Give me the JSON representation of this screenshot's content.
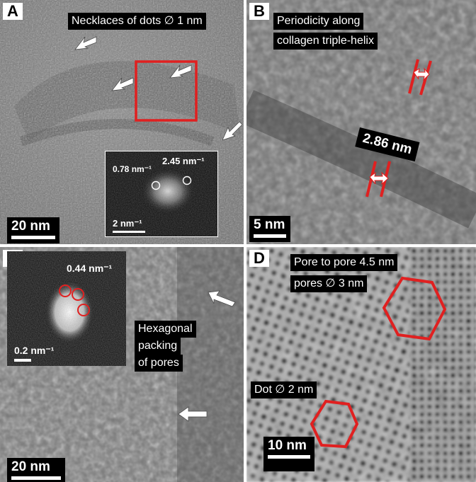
{
  "panels": {
    "A": {
      "letter": "A",
      "caption": "Necklaces of dots ∅ 1 nm",
      "inset": {
        "fft_left": "0.78 nm⁻¹",
        "fft_right": "2.45 nm⁻¹",
        "scale_label": "2 nm⁻¹"
      },
      "scale_label": "20 nm"
    },
    "B": {
      "letter": "B",
      "caption_line1": "Periodicity along",
      "caption_line2": "collagen triple-helix",
      "measurement": "2.86 nm",
      "scale_label": "5 nm"
    },
    "C": {
      "letter": "C",
      "inset": {
        "fft_label": "0.44 nm⁻¹",
        "scale_label": "0.2 nm⁻¹"
      },
      "caption_line1": "Hexagonal",
      "caption_line2": "packing",
      "caption_line3": "of pores",
      "scale_label": "20 nm"
    },
    "D": {
      "letter": "D",
      "caption_line1": "Pore to pore 4.5 nm",
      "caption_line2": "pores ∅ 3 nm",
      "caption_dot": "Dot ∅ 2 nm",
      "scale_label": "10 nm"
    }
  },
  "colors": {
    "annotation_red": "#e02020",
    "label_bg": "#000000",
    "label_text": "#ffffff"
  },
  "icons": [
    "arrow-icon",
    "box-icon",
    "hexagon-icon",
    "circle-icon",
    "double-arrow-icon"
  ]
}
